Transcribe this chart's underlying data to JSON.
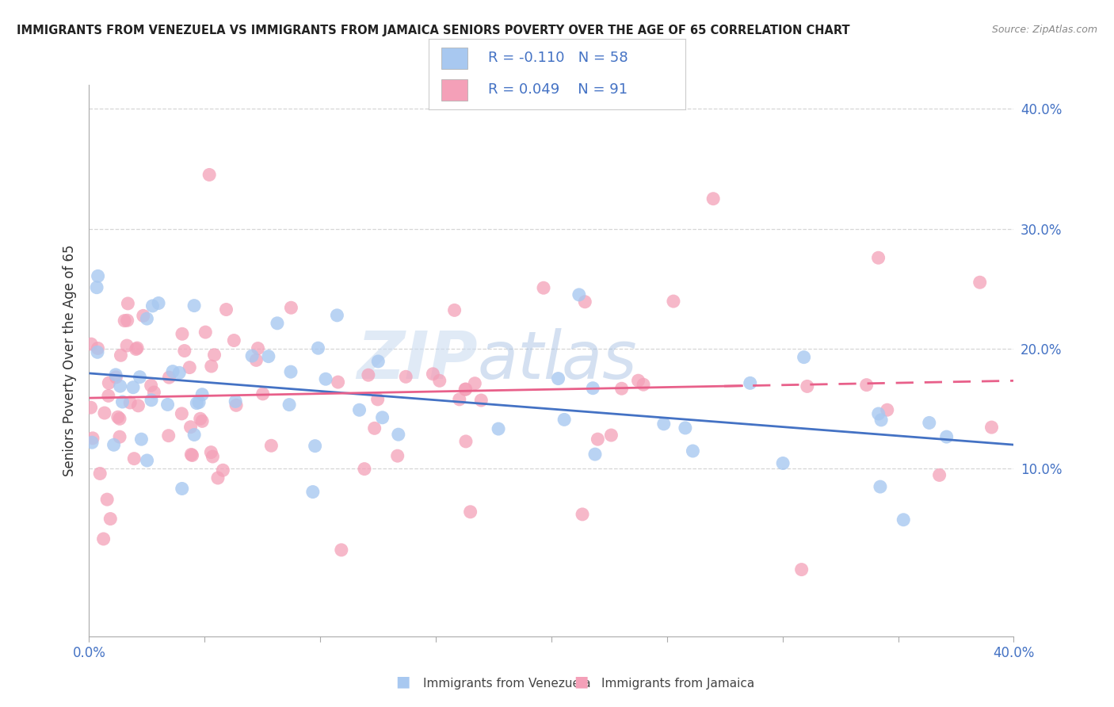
{
  "title": "IMMIGRANTS FROM VENEZUELA VS IMMIGRANTS FROM JAMAICA SENIORS POVERTY OVER THE AGE OF 65 CORRELATION CHART",
  "source": "Source: ZipAtlas.com",
  "ylabel": "Seniors Poverty Over the Age of 65",
  "xlim": [
    0.0,
    0.4
  ],
  "ylim": [
    -0.04,
    0.42
  ],
  "yticks": [
    0.1,
    0.2,
    0.3,
    0.4
  ],
  "ytick_labels": [
    "10.0%",
    "20.0%",
    "30.0%",
    "40.0%"
  ],
  "xtick_left": "0.0%",
  "xtick_right": "40.0%",
  "grid_color": "#cccccc",
  "watermark_zip": "ZIP",
  "watermark_atlas": "atlas",
  "venezuela_color": "#a8c8f0",
  "venezuela_line_color": "#4472c4",
  "jamaica_color": "#f4a0b8",
  "jamaica_line_color": "#e8608a",
  "legend_R1": "-0.110",
  "legend_N1": "58",
  "legend_R2": "0.049",
  "legend_N2": "91",
  "legend_label1": "Immigrants from Venezuela",
  "legend_label2": "Immigrants from Jamaica",
  "legend_text_color": "#4472c4",
  "right_tick_color": "#4472c4",
  "title_color": "#222222",
  "source_color": "#888888",
  "ylabel_color": "#333333"
}
